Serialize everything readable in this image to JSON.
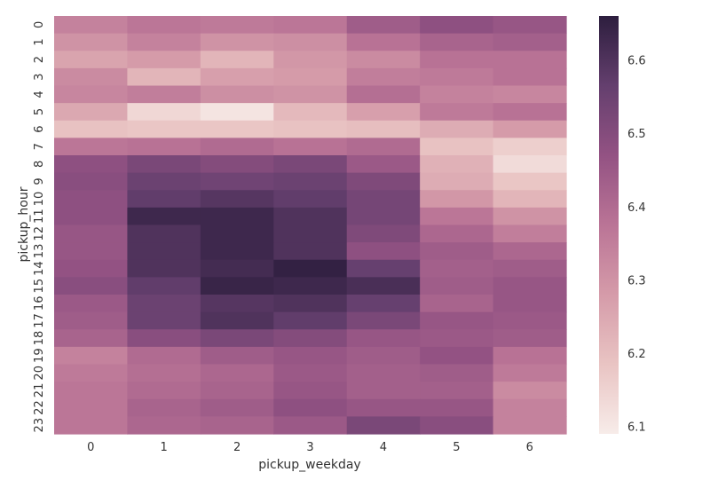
{
  "chart_data": {
    "type": "heatmap",
    "xlabel": "pickup_weekday",
    "ylabel": "pickup_hour",
    "x_categories": [
      "0",
      "1",
      "2",
      "3",
      "4",
      "5",
      "6"
    ],
    "y_categories": [
      "0",
      "1",
      "2",
      "3",
      "4",
      "5",
      "6",
      "7",
      "8",
      "9",
      "10",
      "11",
      "12",
      "13",
      "14",
      "15",
      "16",
      "17",
      "18",
      "19",
      "20",
      "21",
      "22",
      "23"
    ],
    "values": [
      [
        6.34,
        6.37,
        6.36,
        6.37,
        6.44,
        6.48,
        6.46
      ],
      [
        6.3,
        6.34,
        6.3,
        6.31,
        6.38,
        6.42,
        6.43
      ],
      [
        6.26,
        6.28,
        6.22,
        6.29,
        6.32,
        6.38,
        6.38
      ],
      [
        6.32,
        6.22,
        6.27,
        6.28,
        6.35,
        6.36,
        6.38
      ],
      [
        6.33,
        6.35,
        6.31,
        6.3,
        6.39,
        6.34,
        6.33
      ],
      [
        6.25,
        6.14,
        6.11,
        6.21,
        6.27,
        6.36,
        6.38
      ],
      [
        6.19,
        6.18,
        6.18,
        6.19,
        6.2,
        6.24,
        6.28
      ],
      [
        6.37,
        6.38,
        6.4,
        6.38,
        6.4,
        6.19,
        6.16
      ],
      [
        6.48,
        6.52,
        6.5,
        6.52,
        6.45,
        6.23,
        6.13
      ],
      [
        6.49,
        6.55,
        6.54,
        6.55,
        6.51,
        6.24,
        6.18
      ],
      [
        6.48,
        6.57,
        6.59,
        6.57,
        6.53,
        6.29,
        6.22
      ],
      [
        6.48,
        6.63,
        6.63,
        6.6,
        6.53,
        6.37,
        6.3
      ],
      [
        6.46,
        6.6,
        6.63,
        6.6,
        6.51,
        6.41,
        6.35
      ],
      [
        6.46,
        6.6,
        6.63,
        6.6,
        6.48,
        6.44,
        6.41
      ],
      [
        6.47,
        6.6,
        6.62,
        6.65,
        6.56,
        6.43,
        6.44
      ],
      [
        6.49,
        6.57,
        6.64,
        6.63,
        6.61,
        6.44,
        6.46
      ],
      [
        6.45,
        6.55,
        6.59,
        6.6,
        6.56,
        6.42,
        6.46
      ],
      [
        6.44,
        6.55,
        6.6,
        6.57,
        6.52,
        6.46,
        6.45
      ],
      [
        6.42,
        6.49,
        6.52,
        6.5,
        6.46,
        6.45,
        6.44
      ],
      [
        6.34,
        6.4,
        6.44,
        6.46,
        6.44,
        6.47,
        6.38
      ],
      [
        6.36,
        6.39,
        6.41,
        6.45,
        6.43,
        6.44,
        6.36
      ],
      [
        6.37,
        6.4,
        6.42,
        6.46,
        6.43,
        6.43,
        6.32
      ],
      [
        6.37,
        6.42,
        6.44,
        6.48,
        6.46,
        6.46,
        6.34
      ],
      [
        6.37,
        6.41,
        6.42,
        6.45,
        6.52,
        6.49,
        6.34
      ]
    ],
    "colorbar": {
      "min": 6.09,
      "max": 6.66,
      "ticks": [
        "6.1",
        "6.2",
        "6.3",
        "6.4",
        "6.5",
        "6.6"
      ],
      "colors": [
        "#f7ece9",
        "#e9c4c3",
        "#d59ba9",
        "#ba7496",
        "#935283",
        "#643f6e",
        "#2d1e3e"
      ]
    },
    "grid": false,
    "legend": "colorbar-right"
  }
}
